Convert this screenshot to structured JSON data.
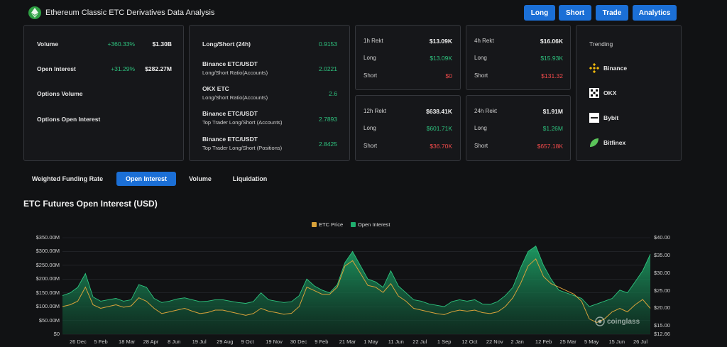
{
  "header": {
    "title": "Ethereum Classic ETC Derivatives Data Analysis",
    "buttons": [
      "Long",
      "Short",
      "Trade",
      "Analytics"
    ]
  },
  "overview": {
    "rows": [
      {
        "label": "Volume",
        "change": "+360.33%",
        "value": "$1.30B"
      },
      {
        "label": "Open Interest",
        "change": "+31.29%",
        "value": "$282.27M"
      },
      {
        "label": "Options Volume",
        "change": "",
        "value": ""
      },
      {
        "label": "Options Open Interest",
        "change": "",
        "value": ""
      }
    ]
  },
  "long_short": {
    "rows": [
      {
        "title": "Long/Short (24h)",
        "subtitle": "",
        "value": "0.9153"
      },
      {
        "title": "Binance ETC/USDT",
        "subtitle": "Long/Short Ratio(Accounts)",
        "value": "2.0221"
      },
      {
        "title": "OKX ETC",
        "subtitle": "Long/Short Ratio(Accounts)",
        "value": "2.6"
      },
      {
        "title": "Binance ETC/USDT",
        "subtitle": "Top Trader Long/Short (Accounts)",
        "value": "2.7893"
      },
      {
        "title": "Binance ETC/USDT",
        "subtitle": "Top Trader Long/Short (Positions)",
        "value": "2.8425"
      }
    ]
  },
  "rekt": {
    "long_label": "Long",
    "short_label": "Short",
    "cards": [
      {
        "period": "1h Rekt",
        "total": "$13.09K",
        "long": "$13.09K",
        "short": "$0"
      },
      {
        "period": "4h Rekt",
        "total": "$16.06K",
        "long": "$15.93K",
        "short": "$131.32"
      },
      {
        "period": "12h Rekt",
        "total": "$638.41K",
        "long": "$601.71K",
        "short": "$36.70K"
      },
      {
        "period": "24h Rekt",
        "total": "$1.91M",
        "long": "$1.26M",
        "short": "$657.18K"
      }
    ]
  },
  "trending": {
    "title": "Trending",
    "items": [
      {
        "name": "Binance",
        "icon": "binance-icon"
      },
      {
        "name": "OKX",
        "icon": "okx-icon"
      },
      {
        "name": "Bybit",
        "icon": "bybit-icon"
      },
      {
        "name": "Bitfinex",
        "icon": "bitfinex-icon"
      }
    ]
  },
  "tabs": [
    "Weighted Funding Rate",
    "Open Interest",
    "Volume",
    "Liquidation"
  ],
  "active_tab": "Open Interest",
  "chart_section_title": "ETC Futures Open Interest (USD)",
  "watermark": "coinglass",
  "colors": {
    "accent": "#1b6fd6",
    "green": "#2ec27e",
    "red": "#f04a4a",
    "price": "#d9a23a",
    "oi": "#1fae6e"
  },
  "chart_data": {
    "type": "area",
    "legend": [
      "ETC Price",
      "Open Interest"
    ],
    "legend_position": "top-center",
    "grid": true,
    "x_ticks": [
      "26 Dec",
      "5 Feb",
      "18 Mar",
      "28 Apr",
      "8 Jun",
      "19 Jul",
      "29 Aug",
      "9 Oct",
      "19 Nov",
      "30 Dec",
      "9 Feb",
      "21 Mar",
      "1 May",
      "11 Jun",
      "22 Jul",
      "1 Sep",
      "12 Oct",
      "22 Nov",
      "2 Jan",
      "12 Feb",
      "25 Mar",
      "5 May",
      "15 Jun",
      "26 Jul"
    ],
    "y_left_ticks": [
      "$0",
      "$50.00M",
      "$100.00M",
      "$150.00M",
      "$200.00M",
      "$250.00M",
      "$300.00M",
      "$350.00M"
    ],
    "y_right_ticks": [
      "$12.66",
      "$15.00",
      "$20.00",
      "$25.00",
      "$30.00",
      "$35.00",
      "$40.00"
    ],
    "y_left_range": [
      0,
      350000000
    ],
    "y_right_range": [
      12.66,
      40
    ],
    "series": [
      {
        "name": "Open Interest",
        "axis": "left",
        "values": [
          140,
          150,
          170,
          220,
          135,
          120,
          125,
          130,
          120,
          125,
          180,
          170,
          130,
          115,
          120,
          128,
          132,
          125,
          118,
          120,
          125,
          125,
          120,
          115,
          112,
          118,
          150,
          125,
          120,
          115,
          118,
          140,
          200,
          175,
          160,
          150,
          180,
          260,
          300,
          250,
          200,
          190,
          170,
          230,
          175,
          150,
          125,
          120,
          110,
          105,
          100,
          118,
          125,
          120,
          125,
          110,
          108,
          118,
          140,
          170,
          240,
          300,
          320,
          250,
          200,
          160,
          150,
          140,
          130,
          100,
          110,
          120,
          130,
          160,
          150,
          190,
          230,
          290
        ]
      },
      {
        "name": "ETC Price",
        "axis": "right",
        "values": [
          20.5,
          21.0,
          22.0,
          26.0,
          21.0,
          20.0,
          20.5,
          21.0,
          20.3,
          20.7,
          23.0,
          22.0,
          20.0,
          18.5,
          19.0,
          19.5,
          20.0,
          19.2,
          18.5,
          18.8,
          19.5,
          19.5,
          19.0,
          18.5,
          18.0,
          18.5,
          20.0,
          19.2,
          18.8,
          18.3,
          18.6,
          20.5,
          26.0,
          25.0,
          24.0,
          24.0,
          26.0,
          32.0,
          33.5,
          30.0,
          26.5,
          26.0,
          24.5,
          27.0,
          23.5,
          22.0,
          20.0,
          19.5,
          19.0,
          18.5,
          18.2,
          19.0,
          19.5,
          19.2,
          19.5,
          18.8,
          18.5,
          19.0,
          20.5,
          23.0,
          27.0,
          32.0,
          34.0,
          29.0,
          27.0,
          26.0,
          25.0,
          24.0,
          22.0,
          17.0,
          16.0,
          17.0,
          19.0,
          20.0,
          19.0,
          21.0,
          22.5,
          20.0
        ]
      }
    ]
  }
}
